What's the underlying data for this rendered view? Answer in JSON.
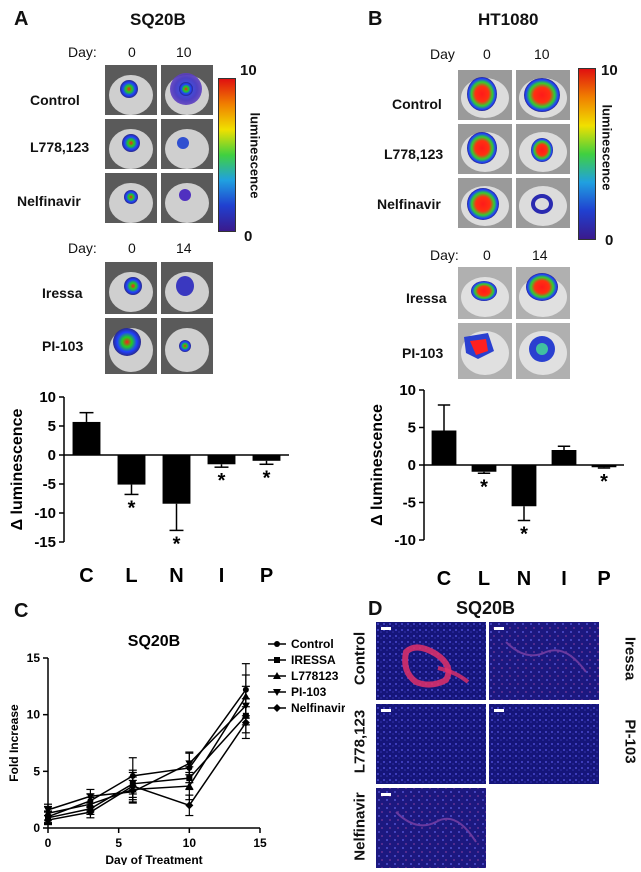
{
  "panel_a": {
    "letter": "A",
    "title": "SQ20B",
    "top_block": {
      "day_label": "Day:",
      "days": [
        "0",
        "10"
      ],
      "rows": [
        "Control",
        "L778,123",
        "Nelfinavir"
      ]
    },
    "bottom_block": {
      "day_label": "Day:",
      "days": [
        "0",
        "14"
      ],
      "rows": [
        "Iressa",
        "PI-103"
      ]
    },
    "colorbar": {
      "max": "10",
      "min": "0",
      "label": "luminescence"
    }
  },
  "panel_b": {
    "letter": "B",
    "title": "HT1080",
    "top_block": {
      "day_label": "Day",
      "days": [
        "0",
        "10"
      ],
      "rows": [
        "Control",
        "L778,123",
        "Nelfinavir"
      ]
    },
    "bottom_block": {
      "day_label": "Day:",
      "days": [
        "0",
        "14"
      ],
      "rows": [
        "Iressa",
        "PI-103"
      ]
    },
    "colorbar": {
      "max": "10",
      "min": "0",
      "label": "luminescence"
    }
  },
  "panel_c": {
    "letter": "C",
    "title": "SQ20B"
  },
  "panel_d": {
    "letter": "D",
    "title": "SQ20B",
    "labels": [
      "Control",
      "Iressa",
      "L778,123",
      "PI-103",
      "Nelfinavir"
    ]
  },
  "chart_data": [
    {
      "type": "bar",
      "panel": "A",
      "categories": [
        "C",
        "L",
        "N",
        "I",
        "P"
      ],
      "values": [
        5.7,
        -5.1,
        -8.4,
        -1.6,
        -1.0
      ],
      "errors": [
        1.6,
        1.7,
        4.6,
        0.5,
        0.6
      ],
      "significance": [
        "",
        "*",
        "*",
        "*",
        "*"
      ],
      "ylabel": "Δ luminescence",
      "ylim": [
        -15,
        10
      ],
      "yticks": [
        10,
        5,
        0,
        -5,
        -10,
        -15
      ]
    },
    {
      "type": "bar",
      "panel": "B",
      "categories": [
        "C",
        "L",
        "N",
        "I",
        "P"
      ],
      "values": [
        4.6,
        -0.9,
        -5.5,
        2.0,
        -0.3
      ],
      "errors": [
        3.4,
        0.2,
        1.9,
        0.5,
        0.1
      ],
      "significance": [
        "",
        "*",
        "*",
        "",
        "*"
      ],
      "ylabel": "Δ luminescence",
      "ylim": [
        -10,
        10
      ],
      "yticks": [
        10,
        5,
        0,
        -5,
        -10
      ]
    },
    {
      "type": "line",
      "panel": "C",
      "title": "SQ20B",
      "xlabel": "Day of Treatment",
      "ylabel": "Fold Increase",
      "xlim": [
        0,
        15
      ],
      "ylim": [
        0,
        15
      ],
      "xticks": [
        0,
        5,
        10,
        15
      ],
      "yticks": [
        0,
        5,
        10,
        15
      ],
      "x": [
        0,
        3,
        6,
        10,
        14
      ],
      "series": [
        {
          "name": "Control",
          "values": [
            1.0,
            2.4,
            4.6,
            5.3,
            12.2
          ],
          "err": [
            0.5,
            0.6,
            1.6,
            1.3,
            2.3
          ],
          "marker": "circle"
        },
        {
          "name": "IRESSA",
          "values": [
            0.9,
            1.7,
            3.9,
            4.4,
            9.9
          ],
          "err": [
            0.5,
            0.5,
            1.2,
            1.0,
            1.5
          ],
          "marker": "square"
        },
        {
          "name": "L778123",
          "values": [
            1.3,
            2.1,
            3.4,
            3.7,
            11.6
          ],
          "err": [
            0.6,
            0.6,
            1.1,
            1.2,
            1.9
          ],
          "marker": "triangle-up"
        },
        {
          "name": "PI-103",
          "values": [
            1.6,
            2.8,
            3.2,
            5.7,
            10.8
          ],
          "err": [
            0.5,
            0.6,
            1.0,
            1.0,
            1.7
          ],
          "marker": "triangle-down"
        },
        {
          "name": "Nelfinavir",
          "values": [
            0.7,
            1.4,
            3.7,
            2.0,
            9.3
          ],
          "err": [
            0.4,
            0.5,
            1.2,
            0.9,
            1.4
          ],
          "marker": "diamond"
        }
      ]
    }
  ],
  "colors": {
    "bar": "#000000",
    "colorbar_top": "#e01010",
    "colorbar_bottom": "#3a1a8c",
    "tissue_blue": "#2a2a9a",
    "tissue_red": "#e0306a"
  }
}
